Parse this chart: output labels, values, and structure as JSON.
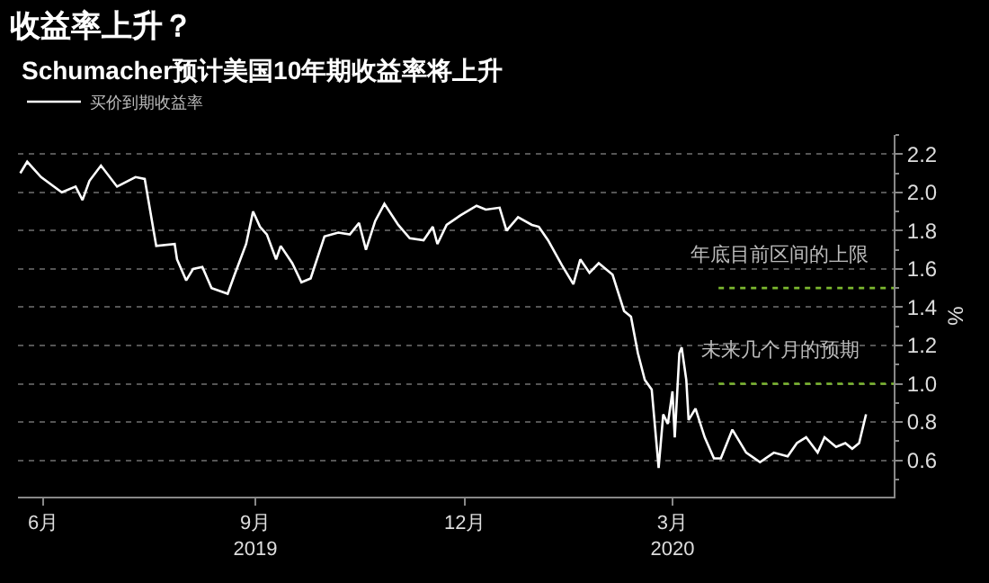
{
  "chart_data": {
    "type": "line",
    "title": "收益率上升？",
    "subtitle": "Schumacher预计美国10年期收益率将上升",
    "ylabel": "%",
    "x": [
      "2019-06-06",
      "2019-06-09",
      "2019-06-15",
      "2019-06-24",
      "2019-06-30",
      "2019-07-03",
      "2019-07-06",
      "2019-07-11",
      "2019-07-18",
      "2019-07-26",
      "2019-07-30",
      "2019-08-04",
      "2019-08-12",
      "2019-08-13",
      "2019-08-17",
      "2019-08-20",
      "2019-08-24",
      "2019-08-28",
      "2019-09-04",
      "2019-09-07",
      "2019-09-12",
      "2019-09-15",
      "2019-09-18",
      "2019-09-21",
      "2019-09-25",
      "2019-09-27",
      "2019-10-02",
      "2019-10-06",
      "2019-10-10",
      "2019-10-16",
      "2019-10-22",
      "2019-10-27",
      "2019-10-31",
      "2019-11-03",
      "2019-11-07",
      "2019-11-11",
      "2019-11-17",
      "2019-11-22",
      "2019-11-28",
      "2019-12-02",
      "2019-12-04",
      "2019-12-08",
      "2019-12-14",
      "2019-12-21",
      "2019-12-25",
      "2019-12-31",
      "2020-01-03",
      "2020-01-08",
      "2020-01-14",
      "2020-01-17",
      "2020-01-21",
      "2020-01-27",
      "2020-02-01",
      "2020-02-04",
      "2020-02-08",
      "2020-02-12",
      "2020-02-18",
      "2020-02-23",
      "2020-02-26",
      "2020-02-29",
      "2020-03-03",
      "2020-03-06",
      "2020-03-09",
      "2020-03-11",
      "2020-03-13",
      "2020-03-15",
      "2020-03-16",
      "2020-03-18",
      "2020-03-19",
      "2020-03-21",
      "2020-03-22",
      "2020-03-25",
      "2020-03-29",
      "2020-04-02",
      "2020-04-05",
      "2020-04-10",
      "2020-04-12",
      "2020-04-16",
      "2020-04-22",
      "2020-04-28",
      "2020-05-04",
      "2020-05-08",
      "2020-05-12",
      "2020-05-17",
      "2020-05-20",
      "2020-05-25",
      "2020-05-29",
      "2020-06-01",
      "2020-06-04",
      "2020-06-07"
    ],
    "series": [
      {
        "name": "买价到期收益率",
        "color": "#ffffff",
        "values": [
          2.1,
          2.16,
          2.08,
          2.0,
          2.03,
          1.96,
          2.06,
          2.14,
          2.03,
          2.08,
          2.07,
          1.72,
          1.73,
          1.65,
          1.54,
          1.6,
          1.61,
          1.5,
          1.47,
          1.57,
          1.73,
          1.9,
          1.82,
          1.78,
          1.65,
          1.72,
          1.63,
          1.53,
          1.55,
          1.77,
          1.79,
          1.78,
          1.84,
          1.7,
          1.85,
          1.94,
          1.83,
          1.76,
          1.75,
          1.82,
          1.73,
          1.83,
          1.88,
          1.93,
          1.91,
          1.92,
          1.8,
          1.87,
          1.83,
          1.82,
          1.75,
          1.62,
          1.52,
          1.65,
          1.58,
          1.63,
          1.57,
          1.38,
          1.35,
          1.16,
          1.02,
          0.97,
          0.56,
          0.84,
          0.79,
          0.96,
          0.72,
          1.16,
          1.19,
          1.02,
          0.81,
          0.87,
          0.72,
          0.61,
          0.61,
          0.76,
          0.72,
          0.64,
          0.59,
          0.64,
          0.62,
          0.69,
          0.72,
          0.64,
          0.72,
          0.67,
          0.69,
          0.66,
          0.69,
          0.84
        ]
      }
    ],
    "xlim": [
      "2019-06-05",
      "2020-06-19"
    ],
    "xticks": [
      {
        "value": "2019-06-16",
        "label": "6月"
      },
      {
        "value": "2019-09-16",
        "label": "9月\n2019"
      },
      {
        "value": "2019-12-16",
        "label": "12月"
      },
      {
        "value": "2020-03-15",
        "label": "3月\n2020"
      }
    ],
    "ylim": [
      0.41,
      2.3
    ],
    "yticks": [
      0.6,
      0.8,
      {
        "value": 1,
        "label": "1.0"
      },
      1.2,
      1.4,
      1.6,
      1.8,
      {
        "value": 2,
        "label": "2.0"
      },
      2.2
    ],
    "grid": "y",
    "legend": "top left",
    "marker": "none",
    "line_style": "solid",
    "ref_lines": [
      {
        "axis": "y",
        "value": 1.5,
        "label": "年底目前区间的上限",
        "color": "#7cb82f",
        "line_style": "dotted"
      },
      {
        "axis": "y",
        "value": 1.0,
        "label": "未来几个月的预期",
        "color": "#7cb82f",
        "line_style": "dotted"
      }
    ]
  }
}
